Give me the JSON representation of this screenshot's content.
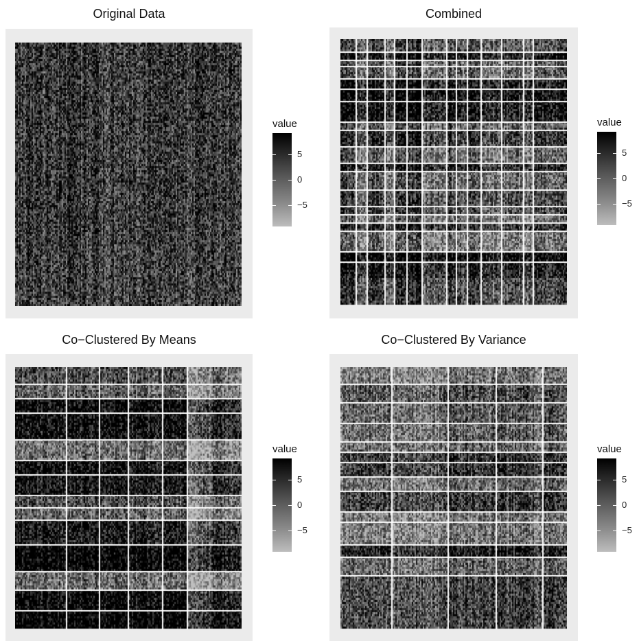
{
  "chart_data": [
    {
      "type": "heatmap",
      "title": "Original Data",
      "legend": {
        "title": "value",
        "ticks": [
          "5",
          "0",
          "−5"
        ],
        "range": [
          -9,
          9
        ],
        "placement": "right"
      },
      "description": "dense random grayscale matrix, no clustering",
      "row_clusters": 0,
      "col_clusters": 0
    },
    {
      "type": "heatmap",
      "title": "Combined",
      "legend": {
        "title": "value",
        "ticks": [
          "5",
          "0",
          "−5"
        ],
        "range": [
          -9,
          9
        ],
        "placement": "right"
      },
      "row_clusters": 19,
      "col_clusters": 14
    },
    {
      "type": "heatmap",
      "title": "Co−Clustered By Means",
      "legend": {
        "title": "value",
        "ticks": [
          "5",
          "0",
          "−5"
        ],
        "range": [
          -9,
          9
        ],
        "placement": "right"
      },
      "row_clusters": 14,
      "col_clusters": 6
    },
    {
      "type": "heatmap",
      "title": "Co−Clustered By Variance",
      "legend": {
        "title": "value",
        "ticks": [
          "5",
          "0",
          "−5"
        ],
        "range": [
          -9,
          9
        ],
        "placement": "right"
      },
      "row_clusters": 14,
      "col_clusters": 5
    }
  ],
  "colors": {
    "low": "#bdbdbd",
    "high": "#000000",
    "panel": "#ebebeb",
    "separator": "#ffffff"
  }
}
